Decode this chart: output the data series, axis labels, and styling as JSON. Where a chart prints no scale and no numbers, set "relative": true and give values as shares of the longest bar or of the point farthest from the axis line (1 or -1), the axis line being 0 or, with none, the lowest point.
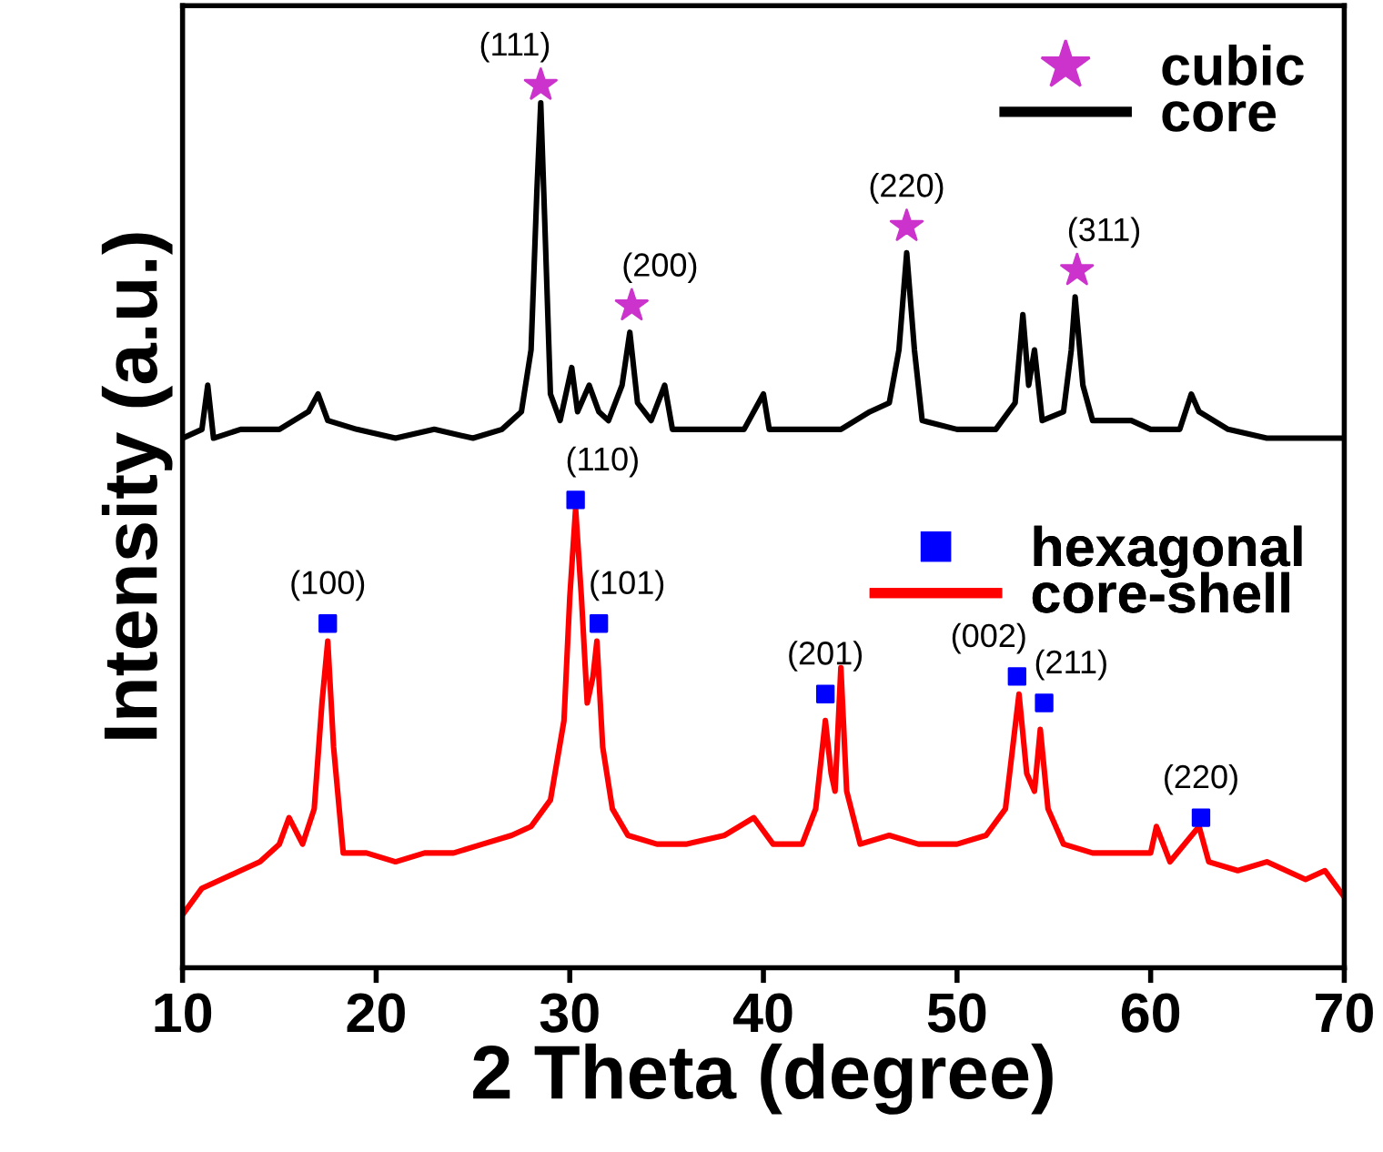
{
  "chart_data": {
    "type": "line",
    "xlabel": "2 Theta (degree)",
    "ylabel": "Intensity (a.u.)",
    "relative": true,
    "xlim": [
      10,
      70
    ],
    "xticks": [
      10,
      20,
      30,
      40,
      50,
      60,
      70
    ],
    "tick_labels": "x",
    "grid": false,
    "legend": "top right",
    "series": [
      {
        "name": "cubic",
        "type": "scatter",
        "marker": "star",
        "color": "#cc33cc",
        "x": [
          28.5,
          33.2,
          47.4,
          56.2
        ],
        "values": [
          1.0,
          0.75,
          0.84,
          0.79
        ]
      },
      {
        "name": "core",
        "color": "#000000",
        "x": [
          10.0,
          11.0,
          11.3,
          11.6,
          13,
          15,
          16.5,
          17,
          17.5,
          19,
          21,
          23,
          25,
          26.5,
          27.5,
          28.0,
          28.3,
          28.5,
          28.7,
          29.0,
          29.5,
          30.1,
          30.4,
          31.0,
          31.5,
          32.0,
          32.7,
          33.1,
          33.5,
          34.2,
          34.9,
          35.3,
          37,
          39,
          40.0,
          40.3,
          42,
          44,
          45.5,
          46.5,
          47.0,
          47.4,
          47.8,
          48.2,
          50,
          52,
          53.0,
          53.4,
          53.7,
          54.0,
          54.4,
          55.5,
          55.9,
          56.1,
          56.5,
          57.0,
          59,
          60,
          61.5,
          62.1,
          62.5,
          64,
          66,
          68,
          70
        ],
        "values": [
          0.6,
          0.61,
          0.66,
          0.6,
          0.61,
          0.61,
          0.63,
          0.65,
          0.62,
          0.61,
          0.6,
          0.61,
          0.6,
          0.61,
          0.63,
          0.7,
          0.88,
          0.98,
          0.85,
          0.65,
          0.62,
          0.68,
          0.63,
          0.66,
          0.63,
          0.62,
          0.66,
          0.72,
          0.64,
          0.62,
          0.66,
          0.61,
          0.61,
          0.61,
          0.65,
          0.61,
          0.61,
          0.61,
          0.63,
          0.64,
          0.7,
          0.81,
          0.7,
          0.62,
          0.61,
          0.61,
          0.64,
          0.74,
          0.66,
          0.7,
          0.62,
          0.63,
          0.7,
          0.76,
          0.66,
          0.62,
          0.62,
          0.61,
          0.61,
          0.65,
          0.63,
          0.61,
          0.6,
          0.6,
          0.6
        ]
      },
      {
        "name": "hexagonal",
        "type": "scatter",
        "marker": "square",
        "color": "#0000ff",
        "x": [
          17.5,
          30.3,
          31.5,
          43.2,
          53.1,
          54.5,
          62.6
        ],
        "values": [
          0.39,
          0.53,
          0.39,
          0.31,
          0.33,
          0.3,
          0.17
        ]
      },
      {
        "name": "core-shell",
        "color": "#ff0000",
        "x": [
          10,
          11,
          12,
          13,
          14,
          15,
          15.5,
          16.2,
          16.8,
          17.2,
          17.5,
          17.8,
          18.3,
          19.5,
          21,
          22.5,
          24,
          25.5,
          27,
          28,
          29,
          29.7,
          30.0,
          30.3,
          30.6,
          30.9,
          31.2,
          31.4,
          31.7,
          32.2,
          33,
          34.5,
          36,
          38,
          39.5,
          40.5,
          42,
          42.7,
          43.2,
          43.5,
          43.7,
          44.0,
          44.3,
          45,
          46.5,
          48,
          50,
          51.5,
          52.5,
          53.2,
          53.6,
          54.0,
          54.3,
          54.7,
          55.5,
          57,
          58.5,
          60,
          60.3,
          61,
          62.5,
          63,
          64.5,
          66,
          68,
          69,
          70
        ],
        "values": [
          0.06,
          0.09,
          0.1,
          0.11,
          0.12,
          0.14,
          0.17,
          0.14,
          0.18,
          0.3,
          0.37,
          0.25,
          0.13,
          0.13,
          0.12,
          0.13,
          0.13,
          0.14,
          0.15,
          0.16,
          0.19,
          0.28,
          0.42,
          0.52,
          0.42,
          0.3,
          0.33,
          0.37,
          0.25,
          0.18,
          0.15,
          0.14,
          0.14,
          0.15,
          0.17,
          0.14,
          0.14,
          0.18,
          0.28,
          0.22,
          0.2,
          0.34,
          0.2,
          0.14,
          0.15,
          0.14,
          0.14,
          0.15,
          0.18,
          0.31,
          0.22,
          0.2,
          0.27,
          0.18,
          0.14,
          0.13,
          0.13,
          0.13,
          0.16,
          0.12,
          0.16,
          0.12,
          0.11,
          0.12,
          0.1,
          0.11,
          0.08
        ]
      }
    ],
    "annotations": [
      {
        "text": "(111)",
        "x": 28.5,
        "y": 1.0
      },
      {
        "text": "(200)",
        "x": 33.2,
        "y": 0.75
      },
      {
        "text": "(220)",
        "x": 47.4,
        "y": 0.84
      },
      {
        "text": "(311)",
        "x": 56.2,
        "y": 0.79
      },
      {
        "text": "(100)",
        "x": 17.5,
        "y": 0.39
      },
      {
        "text": "(110)",
        "x": 30.3,
        "y": 0.53
      },
      {
        "text": "(101)",
        "x": 31.5,
        "y": 0.39
      },
      {
        "text": "(201)",
        "x": 43.2,
        "y": 0.31
      },
      {
        "text": "(002)",
        "x": 53.1,
        "y": 0.33
      },
      {
        "text": "(211)",
        "x": 54.5,
        "y": 0.3
      },
      {
        "text": "(220)",
        "x": 62.6,
        "y": 0.17
      }
    ]
  }
}
